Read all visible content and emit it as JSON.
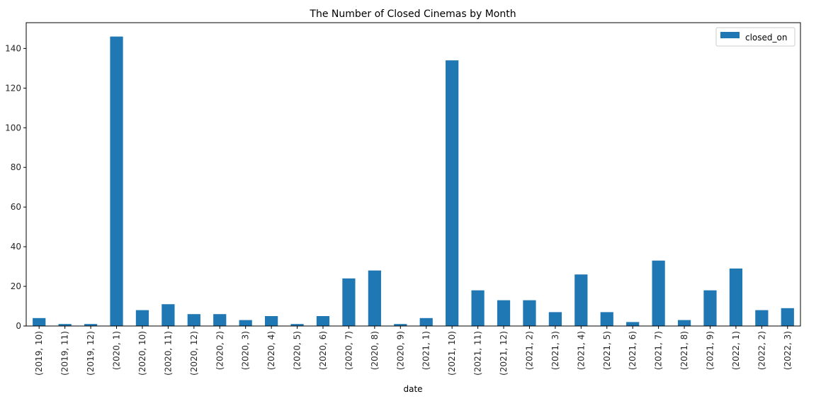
{
  "chart_data": {
    "type": "bar",
    "title": "The Number of Closed Cinemas by Month",
    "xlabel": "date",
    "ylabel": "",
    "ylim": [
      0,
      153
    ],
    "yticks": [
      0,
      20,
      40,
      60,
      80,
      100,
      120,
      140
    ],
    "grid": false,
    "legend_position": "top-right",
    "categories": [
      "(2019, 10)",
      "(2019, 11)",
      "(2019, 12)",
      "(2020, 1)",
      "(2020, 10)",
      "(2020, 11)",
      "(2020, 12)",
      "(2020, 2)",
      "(2020, 3)",
      "(2020, 4)",
      "(2020, 5)",
      "(2020, 6)",
      "(2020, 7)",
      "(2020, 8)",
      "(2020, 9)",
      "(2021, 1)",
      "(2021, 10)",
      "(2021, 11)",
      "(2021, 12)",
      "(2021, 2)",
      "(2021, 3)",
      "(2021, 4)",
      "(2021, 5)",
      "(2021, 6)",
      "(2021, 7)",
      "(2021, 8)",
      "(2021, 9)",
      "(2022, 1)",
      "(2022, 2)",
      "(2022, 3)"
    ],
    "series": [
      {
        "name": "closed_on",
        "color": "#1f77b4",
        "values": [
          4,
          1,
          1,
          146,
          8,
          11,
          6,
          6,
          3,
          5,
          1,
          5,
          24,
          28,
          1,
          4,
          134,
          18,
          13,
          13,
          7,
          26,
          7,
          2,
          33,
          3,
          18,
          29,
          8,
          9
        ]
      }
    ]
  }
}
